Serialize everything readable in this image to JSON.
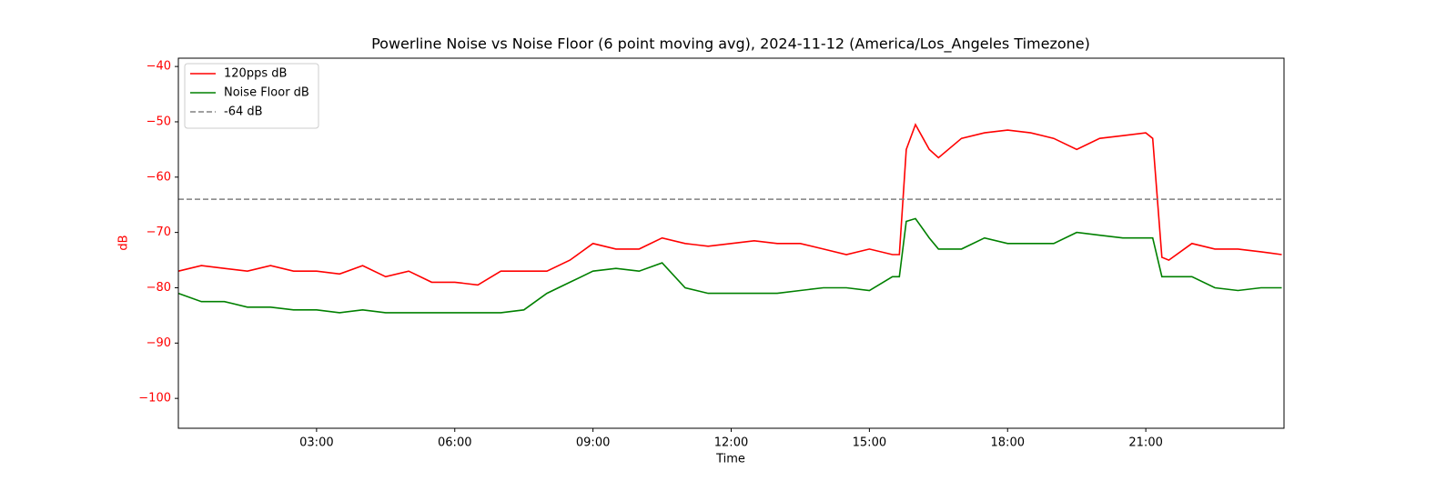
{
  "chart_data": {
    "type": "line",
    "title": "Powerline Noise vs Noise Floor (6 point moving avg), 2024-11-12 (America/Los_Angeles Timezone)",
    "x_label": "Time",
    "y_label": "dB",
    "y_label_color": "#ff0000",
    "x": [
      0,
      0.5,
      1,
      1.5,
      2,
      2.5,
      3,
      3.5,
      4,
      4.5,
      5,
      5.5,
      6,
      6.5,
      7,
      7.5,
      8,
      8.5,
      9,
      9.5,
      10,
      10.5,
      11,
      11.5,
      12,
      12.5,
      13,
      13.5,
      14,
      14.5,
      15,
      15.5,
      15.65,
      15.8,
      16,
      16.3,
      16.5,
      17,
      17.5,
      18,
      18.5,
      19,
      19.5,
      20,
      20.5,
      21,
      21.15,
      21.35,
      21.5,
      22,
      22.5,
      23,
      23.5,
      23.95
    ],
    "series": [
      {
        "name": "120pps dB",
        "color": "#ff0000",
        "values": [
          -77,
          -76,
          -76.5,
          -77,
          -76,
          -77,
          -77,
          -77.5,
          -76,
          -78,
          -77,
          -79,
          -79,
          -79.5,
          -77,
          -77,
          -77,
          -75,
          -72,
          -73,
          -73,
          -71,
          -72,
          -72.5,
          -72,
          -71.5,
          -72,
          -72,
          -73,
          -74,
          -73,
          -74,
          -74,
          -55,
          -50.5,
          -55,
          -56.5,
          -53,
          -52,
          -51.5,
          -52,
          -53,
          -55,
          -53,
          -52.5,
          -52,
          -53,
          -74.5,
          -75,
          -72,
          -73,
          -73,
          -73.5,
          -74
        ]
      },
      {
        "name": "Noise Floor dB",
        "color": "#008000",
        "values": [
          -81,
          -82.5,
          -82.5,
          -83.5,
          -83.5,
          -84,
          -84,
          -84.5,
          -84,
          -84.5,
          -84.5,
          -84.5,
          -84.5,
          -84.5,
          -84.5,
          -84,
          -81,
          -79,
          -77,
          -76.5,
          -77,
          -75.5,
          -80,
          -81,
          -81,
          -81,
          -81,
          -80.5,
          -80,
          -80,
          -80.5,
          -78,
          -78,
          -68,
          -67.5,
          -71,
          -73,
          -73,
          -71,
          -72,
          -72,
          -72,
          -70,
          -70.5,
          -71,
          -71,
          -71,
          -78,
          -78,
          -78,
          -80,
          -80.5,
          -80,
          -80
        ]
      }
    ],
    "hlines": [
      {
        "name": "-64 dB",
        "value": -64,
        "color": "#808080",
        "dashed": true
      }
    ],
    "xlim": [
      0,
      24
    ],
    "xticks": [
      {
        "value": 3,
        "label": "03:00"
      },
      {
        "value": 6,
        "label": "06:00"
      },
      {
        "value": 9,
        "label": "09:00"
      },
      {
        "value": 12,
        "label": "12:00"
      },
      {
        "value": 15,
        "label": "15:00"
      },
      {
        "value": 18,
        "label": "18:00"
      },
      {
        "value": 21,
        "label": "21:00"
      }
    ],
    "ylim": [
      -105.4,
      -38.5
    ],
    "yticks": [
      {
        "value": -40,
        "label": "−40"
      },
      {
        "value": -50,
        "label": "−50"
      },
      {
        "value": -60,
        "label": "−60"
      },
      {
        "value": -70,
        "label": "−70"
      },
      {
        "value": -80,
        "label": "−80"
      },
      {
        "value": -90,
        "label": "−90"
      },
      {
        "value": -100,
        "label": "−100"
      }
    ],
    "legend": "upper-left"
  }
}
